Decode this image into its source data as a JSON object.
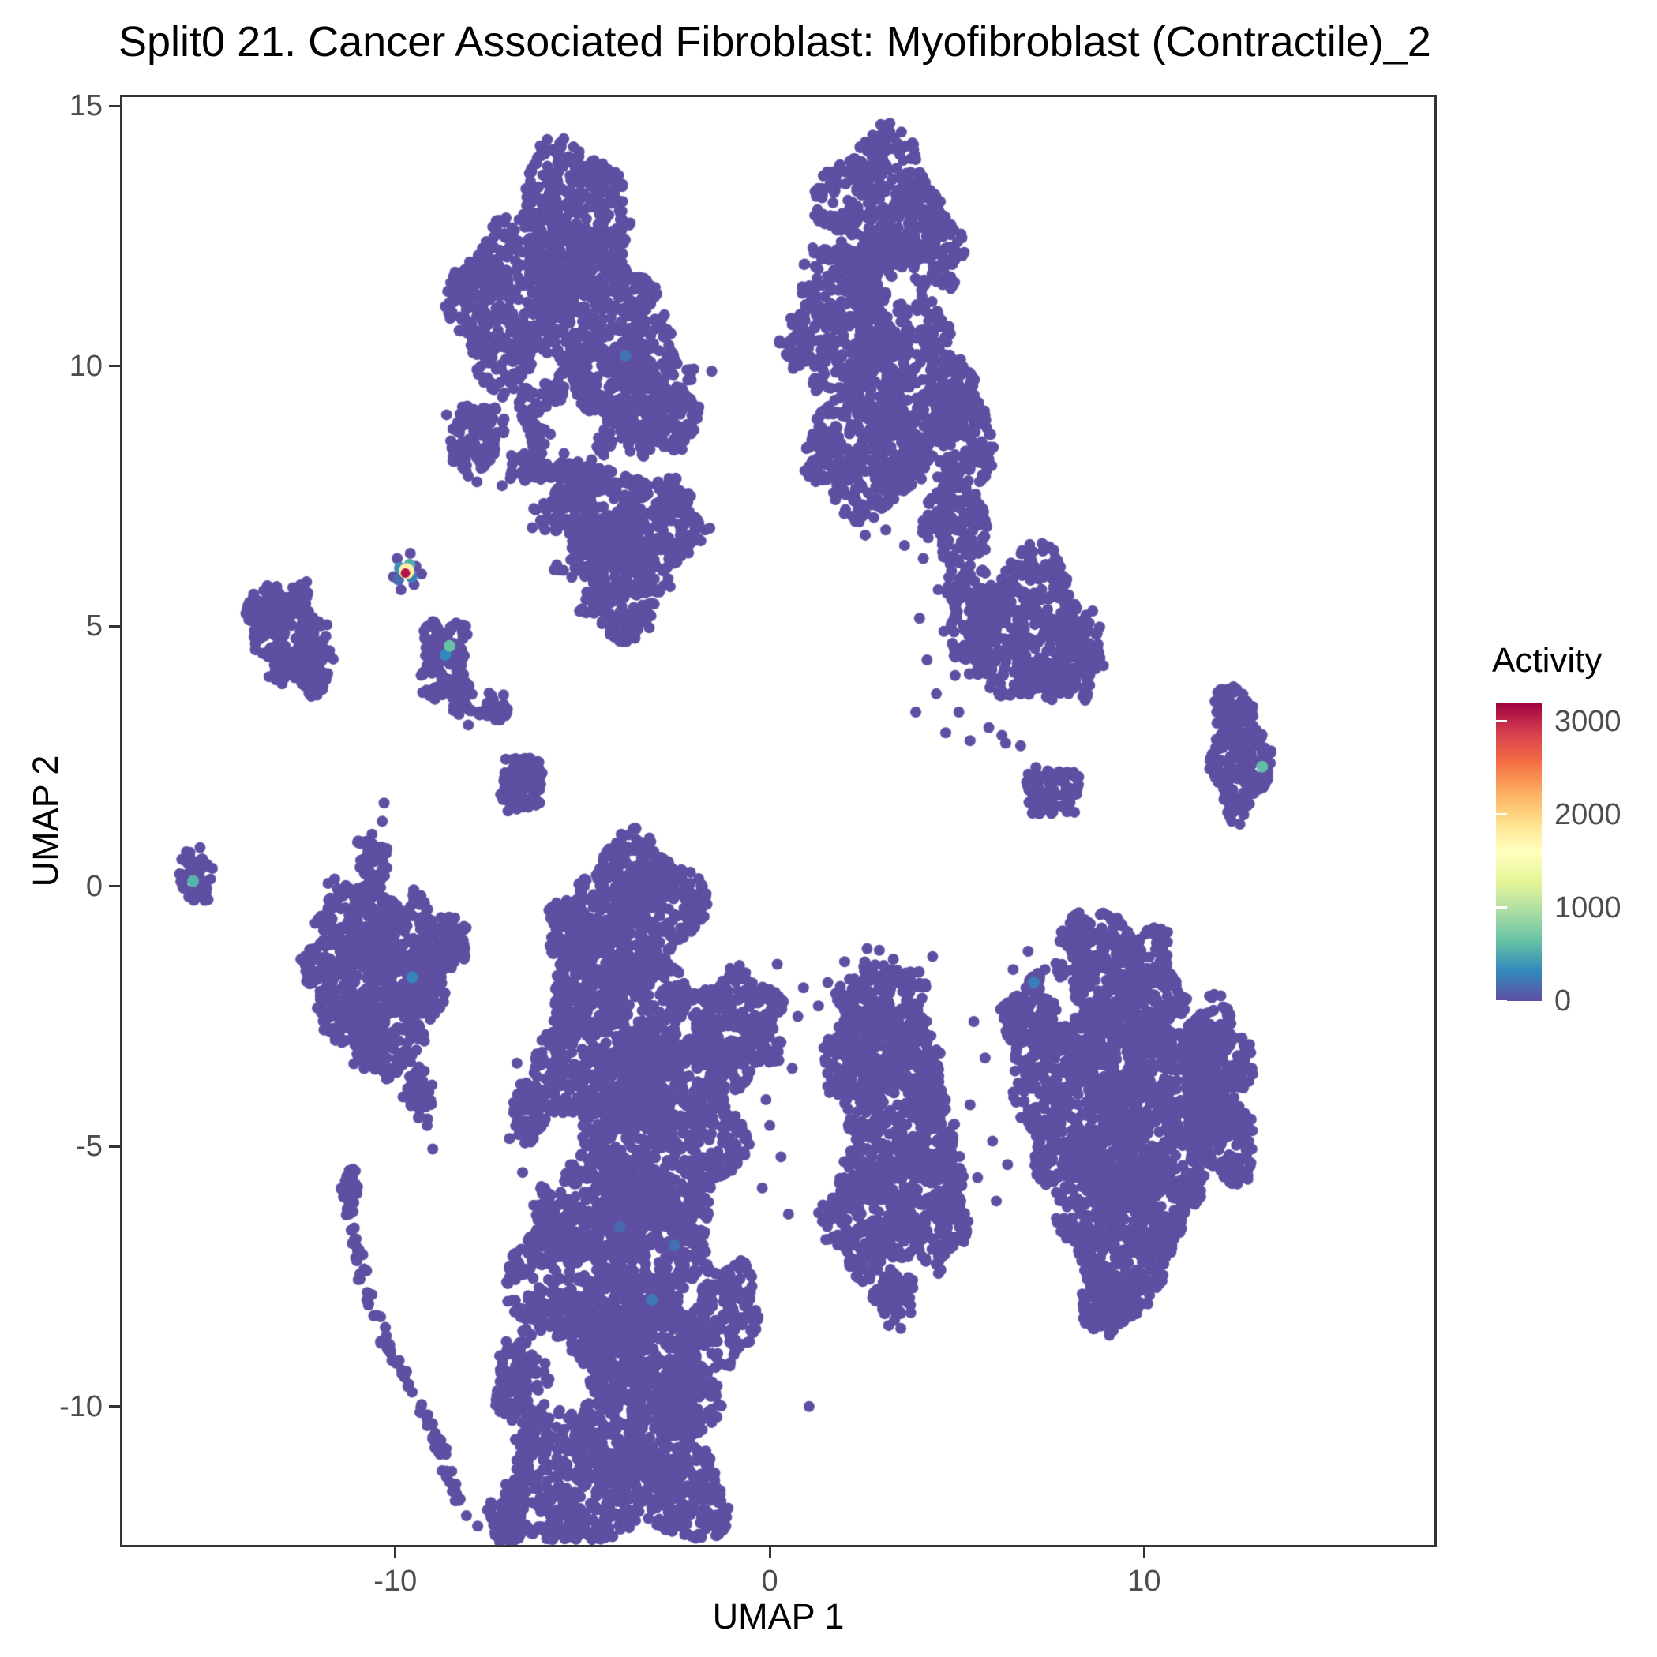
{
  "title": "Split0 21. Cancer Associated Fibroblast: Myofibroblast (Contractile)_2",
  "chart_data": {
    "type": "scatter",
    "title": "Split0 21. Cancer Associated Fibroblast: Myofibroblast (Contractile)_2",
    "xlabel": "UMAP 1",
    "ylabel": "UMAP 2",
    "xlim": [
      -17.29,
      17.75
    ],
    "ylim": [
      -12.66,
      15.17
    ],
    "x_ticks": [
      -10,
      0,
      10
    ],
    "y_ticks": [
      15,
      10,
      5,
      0,
      -5,
      -10
    ],
    "grid": false,
    "legend_position": "right",
    "legend": {
      "title": "Activity",
      "ticks": [
        3000,
        2000,
        1000,
        0
      ],
      "min": 0,
      "max": 3200
    },
    "point_color": "#5E4FA2",
    "point_radius_px": 7,
    "palette": [
      {
        "v": 0,
        "c": "#5E4FA2"
      },
      {
        "v": 320,
        "c": "#3288BD"
      },
      {
        "v": 640,
        "c": "#66C2A5"
      },
      {
        "v": 960,
        "c": "#ABDDA4"
      },
      {
        "v": 1280,
        "c": "#E6F598"
      },
      {
        "v": 1600,
        "c": "#FFFFBF"
      },
      {
        "v": 1920,
        "c": "#FEE08B"
      },
      {
        "v": 2240,
        "c": "#FDAE61"
      },
      {
        "v": 2560,
        "c": "#F46D43"
      },
      {
        "v": 2880,
        "c": "#D53E4F"
      },
      {
        "v": 3200,
        "c": "#9E0142"
      }
    ],
    "blobs": [
      {
        "name": "topleft-crown",
        "x": -5.3,
        "y": 12.9,
        "rx": 1.35,
        "ry": 1.5,
        "n": 380
      },
      {
        "name": "topleft-west",
        "x": -7.0,
        "y": 11.2,
        "rx": 1.55,
        "ry": 1.5,
        "n": 430
      },
      {
        "name": "topleft-east",
        "x": -4.6,
        "y": 10.9,
        "rx": 1.5,
        "ry": 1.55,
        "n": 430
      },
      {
        "name": "topleft-arm",
        "x": -3.2,
        "y": 9.6,
        "rx": 1.1,
        "ry": 1.3,
        "n": 270
      },
      {
        "name": "topleft-arm-tip",
        "x": -2.5,
        "y": 9.0,
        "rx": 0.55,
        "ry": 0.6,
        "n": 60
      },
      {
        "name": "topleft-ring",
        "x": -5.3,
        "y": 8.8,
        "rx": 1.35,
        "ry": 1.15,
        "n": 230,
        "inner": 0.45
      },
      {
        "name": "topleft-side-blob",
        "x": -7.9,
        "y": 8.6,
        "rx": 0.75,
        "ry": 0.8,
        "n": 120
      },
      {
        "name": "topleft-speck",
        "x": -6.6,
        "y": 8.05,
        "rx": 0.4,
        "ry": 0.35,
        "n": 30
      },
      {
        "name": "triangle-top",
        "x": -4.0,
        "y": 7.15,
        "rx": 2.3,
        "ry": 0.85,
        "n": 380
      },
      {
        "name": "triangle-mid",
        "x": -4.0,
        "y": 6.25,
        "rx": 1.65,
        "ry": 0.7,
        "n": 210
      },
      {
        "name": "triangle-low",
        "x": -3.95,
        "y": 5.45,
        "rx": 1.0,
        "ry": 0.55,
        "n": 100
      },
      {
        "name": "triangle-tip",
        "x": -3.9,
        "y": 4.9,
        "rx": 0.45,
        "ry": 0.3,
        "n": 30
      },
      {
        "name": "topright-crown",
        "x": 2.9,
        "y": 13.0,
        "rx": 1.7,
        "ry": 1.4,
        "n": 450
      },
      {
        "name": "topright-ne",
        "x": 4.35,
        "y": 12.3,
        "rx": 0.8,
        "ry": 0.8,
        "n": 110
      },
      {
        "name": "topright-west",
        "x": 1.9,
        "y": 10.8,
        "rx": 1.45,
        "ry": 1.5,
        "n": 400
      },
      {
        "name": "topright-mid",
        "x": 3.8,
        "y": 9.6,
        "rx": 1.6,
        "ry": 1.6,
        "n": 480
      },
      {
        "name": "topright-east",
        "x": 5.3,
        "y": 8.6,
        "rx": 0.7,
        "ry": 1.0,
        "n": 130
      },
      {
        "name": "topright-south",
        "x": 2.8,
        "y": 8.2,
        "rx": 1.3,
        "ry": 1.1,
        "n": 270
      },
      {
        "name": "topright-sw-bump",
        "x": 1.45,
        "y": 8.4,
        "rx": 0.5,
        "ry": 0.7,
        "n": 70
      },
      {
        "name": "topright-bridge",
        "x": 5.0,
        "y": 7.1,
        "rx": 0.85,
        "ry": 1.0,
        "n": 160
      },
      {
        "name": "topright-lower-mass",
        "x": 6.9,
        "y": 4.9,
        "rx": 1.5,
        "ry": 1.5,
        "n": 430
      },
      {
        "name": "topright-lower-east",
        "x": 8.2,
        "y": 4.5,
        "rx": 0.7,
        "ry": 0.9,
        "n": 120
      },
      {
        "name": "topright-lower-west",
        "x": 5.4,
        "y": 5.3,
        "rx": 0.7,
        "ry": 1.0,
        "n": 130
      },
      {
        "name": "west-small",
        "x": -12.8,
        "y": 4.8,
        "rx": 0.95,
        "ry": 1.0,
        "n": 200
      },
      {
        "name": "west-small-nw",
        "x": -13.5,
        "y": 5.3,
        "rx": 0.5,
        "ry": 0.5,
        "n": 55
      },
      {
        "name": "west-small-se",
        "x": -12.2,
        "y": 4.2,
        "rx": 0.5,
        "ry": 0.5,
        "n": 55
      },
      {
        "name": "mid-small",
        "x": -8.7,
        "y": 4.35,
        "rx": 0.65,
        "ry": 0.8,
        "n": 140
      },
      {
        "name": "mid-small-tail",
        "x": -8.2,
        "y": 3.6,
        "rx": 0.3,
        "ry": 0.35,
        "n": 30
      },
      {
        "name": "tiny-blob",
        "x": -7.35,
        "y": 3.45,
        "rx": 0.42,
        "ry": 0.3,
        "n": 35
      },
      {
        "name": "small-cluster",
        "x": -6.6,
        "y": 2.0,
        "rx": 0.58,
        "ry": 0.62,
        "n": 95
      },
      {
        "name": "far-west",
        "x": -15.35,
        "y": 0.2,
        "rx": 0.42,
        "ry": 0.55,
        "n": 55
      },
      {
        "name": "left-mid-nw",
        "x": -10.9,
        "y": -0.7,
        "rx": 1.1,
        "ry": 0.9,
        "n": 240
      },
      {
        "name": "left-mid-e",
        "x": -9.6,
        "y": -1.4,
        "rx": 1.2,
        "ry": 1.1,
        "n": 300
      },
      {
        "name": "left-mid-w",
        "x": -11.4,
        "y": -2.1,
        "rx": 0.8,
        "ry": 0.9,
        "n": 160
      },
      {
        "name": "left-mid-s",
        "x": -10.2,
        "y": -2.9,
        "rx": 0.9,
        "ry": 0.8,
        "n": 165
      },
      {
        "name": "left-mid-arm",
        "x": -9.35,
        "y": -3.9,
        "rx": 0.4,
        "ry": 0.6,
        "n": 50
      },
      {
        "name": "left-mid-top-arm",
        "x": -10.6,
        "y": 0.55,
        "rx": 0.4,
        "ry": 0.5,
        "n": 45
      },
      {
        "name": "left-mid-spur-e",
        "x": -8.5,
        "y": -1.0,
        "rx": 0.4,
        "ry": 0.5,
        "n": 50
      },
      {
        "name": "left-mid-spur-w",
        "x": -12.1,
        "y": -1.6,
        "rx": 0.4,
        "ry": 0.5,
        "n": 45
      },
      {
        "name": "giant-knob",
        "x": -3.6,
        "y": -0.4,
        "rx": 1.6,
        "ry": 1.4,
        "n": 560
      },
      {
        "name": "giant-knob-w",
        "x": -5.3,
        "y": -0.9,
        "rx": 0.6,
        "ry": 0.7,
        "n": 90
      },
      {
        "name": "giant-upper",
        "x": -4.3,
        "y": -2.9,
        "rx": 1.9,
        "ry": 1.8,
        "n": 830
      },
      {
        "name": "giant-mid",
        "x": -2.8,
        "y": -4.8,
        "rx": 2.0,
        "ry": 2.0,
        "n": 960
      },
      {
        "name": "giant-lower",
        "x": -4.4,
        "y": -7.3,
        "rx": 2.3,
        "ry": 2.0,
        "n": 1050
      },
      {
        "name": "giant-deep",
        "x": -3.3,
        "y": -9.8,
        "rx": 1.9,
        "ry": 1.7,
        "n": 780
      },
      {
        "name": "giant-bottom-w",
        "x": -5.4,
        "y": -11.5,
        "rx": 1.8,
        "ry": 1.2,
        "n": 430
      },
      {
        "name": "giant-bottom-e",
        "x": -2.2,
        "y": -11.7,
        "rx": 1.1,
        "ry": 0.9,
        "n": 220
      },
      {
        "name": "giant-east-lobe",
        "x": -0.9,
        "y": -2.7,
        "rx": 1.2,
        "ry": 1.1,
        "n": 300
      },
      {
        "name": "giant-se-bulge",
        "x": -1.2,
        "y": -8.2,
        "rx": 0.9,
        "ry": 1.0,
        "n": 170
      },
      {
        "name": "giant-w-frill1",
        "x": -6.4,
        "y": -4.3,
        "rx": 0.5,
        "ry": 0.6,
        "n": 70
      },
      {
        "name": "giant-w-frill2",
        "x": -6.0,
        "y": -6.3,
        "rx": 0.45,
        "ry": 0.5,
        "n": 50
      },
      {
        "name": "giant-w-frill3",
        "x": -6.6,
        "y": -9.6,
        "rx": 0.7,
        "ry": 1.0,
        "n": 130
      },
      {
        "name": "giant-bottom-join",
        "x": -7.0,
        "y": -12.2,
        "rx": 0.5,
        "ry": 0.5,
        "n": 60
      },
      {
        "name": "tail-head",
        "x": -11.2,
        "y": -5.85,
        "rx": 0.22,
        "ry": 0.45,
        "n": 40
      },
      {
        "name": "south-mid-top",
        "x": 3.0,
        "y": -2.4,
        "rx": 1.25,
        "ry": 1.0,
        "n": 290
      },
      {
        "name": "south-mid-wbump",
        "x": 1.9,
        "y": -3.4,
        "rx": 0.5,
        "ry": 0.7,
        "n": 80
      },
      {
        "name": "south-mid-core",
        "x": 3.4,
        "y": -4.3,
        "rx": 1.5,
        "ry": 1.4,
        "n": 490
      },
      {
        "name": "south-mid-sw",
        "x": 2.7,
        "y": -6.3,
        "rx": 1.2,
        "ry": 1.2,
        "n": 330
      },
      {
        "name": "south-mid-se",
        "x": 4.4,
        "y": -6.2,
        "rx": 0.9,
        "ry": 1.1,
        "n": 230
      },
      {
        "name": "south-mid-tip",
        "x": 3.3,
        "y": -7.9,
        "rx": 0.55,
        "ry": 0.5,
        "n": 70
      },
      {
        "name": "southeast-top",
        "x": 9.4,
        "y": -1.9,
        "rx": 1.5,
        "ry": 1.3,
        "n": 490
      },
      {
        "name": "southeast-top-bump",
        "x": 8.3,
        "y": -0.95,
        "rx": 0.5,
        "ry": 0.4,
        "n": 55
      },
      {
        "name": "southeast-w",
        "x": 8.2,
        "y": -4.3,
        "rx": 1.45,
        "ry": 1.6,
        "n": 550
      },
      {
        "name": "southeast-e",
        "x": 10.6,
        "y": -4.3,
        "rx": 1.7,
        "ry": 1.7,
        "n": 700
      },
      {
        "name": "southeast-s",
        "x": 9.4,
        "y": -6.6,
        "rx": 1.7,
        "ry": 1.4,
        "n": 580
      },
      {
        "name": "southeast-ebump",
        "x": 11.9,
        "y": -3.3,
        "rx": 0.9,
        "ry": 1.1,
        "n": 230
      },
      {
        "name": "southeast-ebump2",
        "x": 12.35,
        "y": -5.0,
        "rx": 0.6,
        "ry": 0.8,
        "n": 115
      },
      {
        "name": "southeast-wlobe",
        "x": 7.0,
        "y": -2.6,
        "rx": 0.75,
        "ry": 0.85,
        "n": 155
      },
      {
        "name": "southeast-tip",
        "x": 9.0,
        "y": -8.1,
        "rx": 0.7,
        "ry": 0.5,
        "n": 80
      },
      {
        "name": "east-small",
        "x": 12.6,
        "y": 2.4,
        "rx": 0.78,
        "ry": 1.05,
        "n": 195
      },
      {
        "name": "east-small-top",
        "x": 12.25,
        "y": 3.4,
        "rx": 0.42,
        "ry": 0.45,
        "n": 48
      },
      {
        "name": "east-arc",
        "x": 7.55,
        "y": 1.8,
        "rx": 0.78,
        "ry": 0.5,
        "n": 95
      }
    ],
    "paths": [
      {
        "name": "southwest-tail",
        "pts": [
          [
            -11.2,
            -6.2
          ],
          [
            -11.05,
            -7.0
          ],
          [
            -10.8,
            -7.7
          ],
          [
            -10.5,
            -8.35
          ],
          [
            -10.1,
            -8.95
          ],
          [
            -9.7,
            -9.5
          ],
          [
            -9.3,
            -10.05
          ],
          [
            -8.95,
            -10.55
          ],
          [
            -8.7,
            -11.0
          ],
          [
            -8.5,
            -11.45
          ],
          [
            -8.3,
            -11.85
          ]
        ],
        "n": 95,
        "jitter": 0.12
      }
    ],
    "extra_points": [
      [
        -1.55,
        9.9
      ],
      [
        -7.15,
        7.7
      ],
      [
        -9.95,
        6.3
      ],
      [
        -9.6,
        6.4
      ],
      [
        -9.45,
        6.15
      ],
      [
        -9.5,
        5.8
      ],
      [
        -9.85,
        5.7
      ],
      [
        -10.05,
        5.95
      ],
      [
        -9.3,
        6.0
      ],
      [
        4.1,
        6.3
      ],
      [
        4.5,
        5.7
      ],
      [
        4.0,
        5.15
      ],
      [
        4.65,
        4.9
      ],
      [
        4.2,
        4.35
      ],
      [
        4.95,
        4.05
      ],
      [
        4.45,
        3.7
      ],
      [
        5.05,
        3.35
      ],
      [
        4.7,
        2.95
      ],
      [
        5.35,
        2.8
      ],
      [
        5.85,
        3.05
      ],
      [
        6.3,
        2.75
      ],
      [
        3.9,
        3.35
      ],
      [
        3.6,
        6.55
      ],
      [
        3.1,
        6.85
      ],
      [
        2.55,
        6.75
      ],
      [
        6.2,
        2.9
      ],
      [
        6.7,
        2.7
      ],
      [
        -8.05,
        3.1
      ],
      [
        -9.15,
        -4.6
      ],
      [
        -9.0,
        -5.05
      ],
      [
        -10.35,
        1.25
      ],
      [
        -10.3,
        1.6
      ],
      [
        0.35,
        -2.2
      ],
      [
        0.75,
        -2.5
      ],
      [
        0.3,
        -3.0
      ],
      [
        0.9,
        -1.95
      ],
      [
        1.3,
        -2.3
      ],
      [
        0.6,
        -3.5
      ],
      [
        -0.1,
        -4.1
      ],
      [
        0.2,
        -1.5
      ],
      [
        0.0,
        -4.6
      ],
      [
        0.3,
        -5.2
      ],
      [
        -0.2,
        -5.8
      ],
      [
        0.5,
        -6.3
      ],
      [
        -6.75,
        -3.4
      ],
      [
        -6.95,
        -4.85
      ],
      [
        -6.6,
        -5.5
      ],
      [
        -6.35,
        -7.2
      ],
      [
        -6.15,
        -8.1
      ],
      [
        -8.1,
        -12.1
      ],
      [
        -7.8,
        -12.3
      ],
      [
        2.0,
        -1.45
      ],
      [
        2.6,
        -1.2
      ],
      [
        3.3,
        -1.4
      ],
      [
        3.95,
        -1.65
      ],
      [
        1.55,
        -1.85
      ],
      [
        4.35,
        -1.35
      ],
      [
        5.45,
        -2.6
      ],
      [
        5.75,
        -3.3
      ],
      [
        5.35,
        -4.2
      ],
      [
        5.95,
        -4.9
      ],
      [
        5.55,
        -5.6
      ],
      [
        6.05,
        -6.05
      ],
      [
        5.25,
        -6.6
      ],
      [
        6.35,
        -5.35
      ],
      [
        6.25,
        -2.3
      ],
      [
        6.5,
        -1.6
      ],
      [
        6.9,
        -1.25
      ],
      [
        7.35,
        -1.6
      ],
      [
        6.55,
        -3.55
      ],
      [
        7.0,
        -3.85
      ],
      [
        1.05,
        -10.0
      ],
      [
        3.5,
        -8.5
      ]
    ],
    "colored_points": [
      [
        -9.73,
        6.02,
        3100
      ],
      [
        -9.7,
        6.06,
        1750
      ],
      [
        -9.62,
        6.18,
        520
      ],
      [
        -9.88,
        6.12,
        360
      ],
      [
        -9.57,
        5.95,
        260
      ],
      [
        -9.92,
        5.9,
        160
      ],
      [
        -8.55,
        4.62,
        650
      ],
      [
        -8.66,
        4.45,
        320
      ],
      [
        -15.4,
        0.1,
        560
      ],
      [
        -9.55,
        -1.75,
        300
      ],
      [
        13.15,
        2.3,
        620
      ],
      [
        7.05,
        -1.85,
        260
      ],
      [
        -3.15,
        -7.95,
        230
      ],
      [
        -2.55,
        -6.9,
        180
      ],
      [
        -4.0,
        -6.55,
        150
      ],
      [
        -3.85,
        10.2,
        200
      ]
    ]
  }
}
